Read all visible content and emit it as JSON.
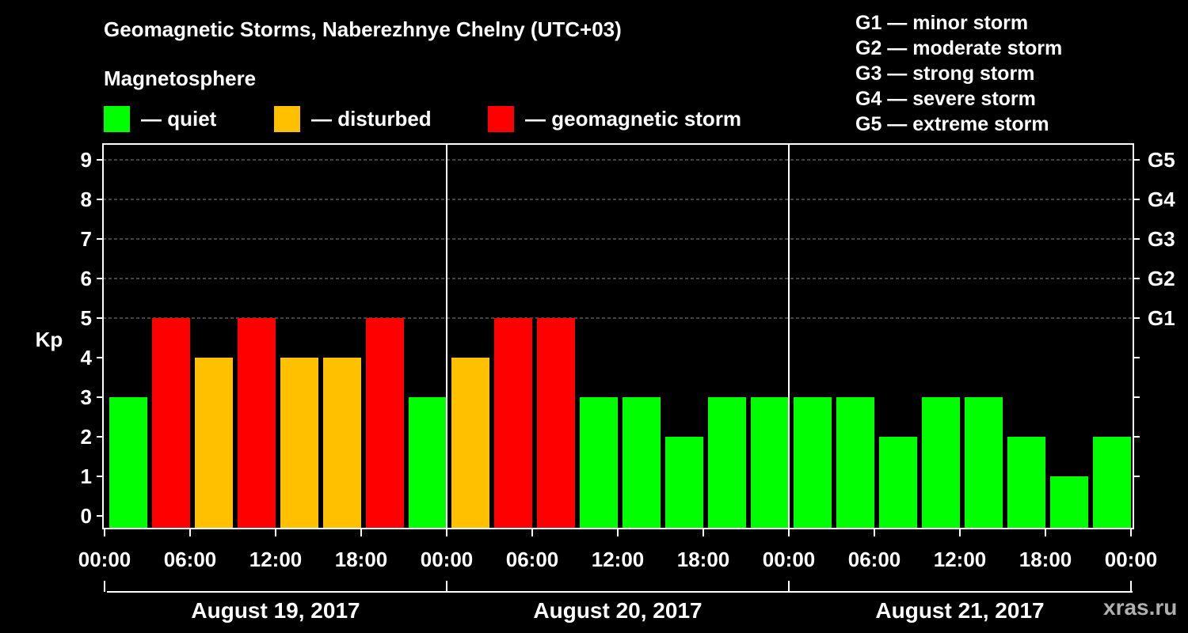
{
  "title": "Geomagnetic Storms, Naberezhnye Chelny (UTC+03)",
  "magnetosphere_label": "Magnetosphere",
  "legend": [
    {
      "label": "— quiet",
      "color": "#00ff00"
    },
    {
      "label": "— disturbed",
      "color": "#ffc000"
    },
    {
      "label": "— geomagnetic storm",
      "color": "#ff0000"
    }
  ],
  "storm_scale": [
    "G1 — minor storm",
    "G2 — moderate storm",
    "G3 — strong storm",
    "G4 — severe storm",
    "G5 — extreme storm"
  ],
  "watermark": "xras.ru",
  "chart_data": {
    "type": "bar",
    "title": "Geomagnetic Storms, Naberezhnye Chelny (UTC+03)",
    "ylabel": "Kp",
    "ylim": [
      0,
      9
    ],
    "yticks": [
      "0",
      "1",
      "2",
      "3",
      "4",
      "5",
      "6",
      "7",
      "8",
      "9"
    ],
    "right_axis_labels": [
      {
        "kp": 5,
        "label": "G1"
      },
      {
        "kp": 6,
        "label": "G2"
      },
      {
        "kp": 7,
        "label": "G3"
      },
      {
        "kp": 8,
        "label": "G4"
      },
      {
        "kp": 9,
        "label": "G5"
      }
    ],
    "xtick_labels": [
      "00:00",
      "06:00",
      "12:00",
      "18:00",
      "00:00",
      "06:00",
      "12:00",
      "18:00",
      "00:00",
      "06:00",
      "12:00",
      "18:00",
      "00:00"
    ],
    "days": [
      "August 19, 2017",
      "August 20, 2017",
      "August 21, 2017"
    ],
    "values": [
      3,
      5,
      4,
      5,
      4,
      4,
      5,
      3,
      4,
      5,
      5,
      3,
      3,
      2,
      3,
      3,
      3,
      3,
      2,
      3,
      3,
      2,
      1,
      2
    ],
    "thresholds": {
      "quiet_max": 3,
      "disturbed": 4,
      "storm_min": 5
    },
    "colors": {
      "quiet": "#00ff00",
      "disturbed": "#ffc000",
      "storm": "#ff0000"
    },
    "grid": true
  }
}
